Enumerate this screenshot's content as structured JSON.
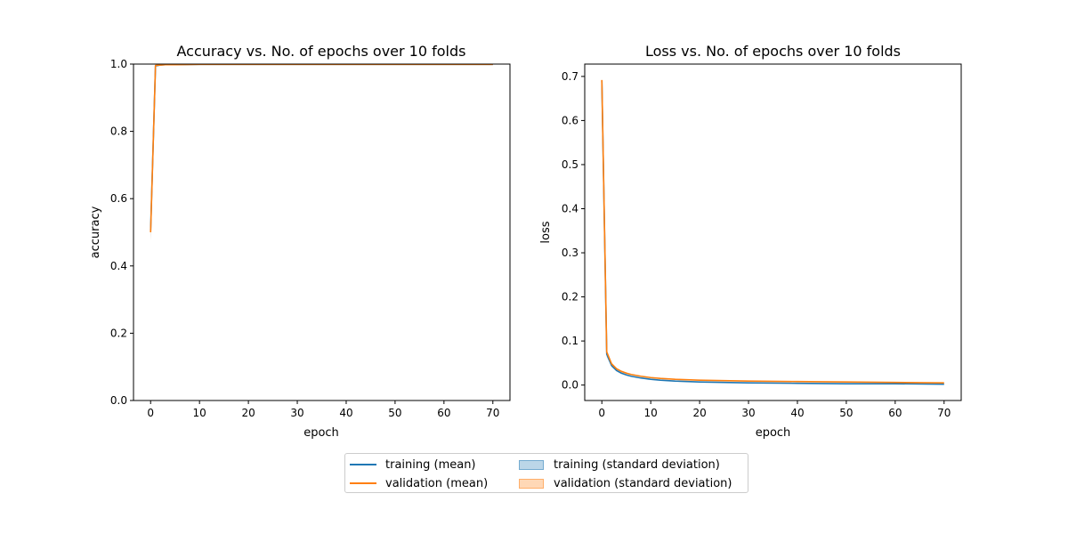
{
  "colors": {
    "training": "#1f77b4",
    "validation": "#ff7f0e",
    "training_fill": "rgba(31,119,180,0.30)",
    "validation_fill": "rgba(255,127,14,0.30)"
  },
  "legend": {
    "training_mean": "training (mean)",
    "validation_mean": "validation (mean)",
    "training_std": "training (standard deviation)",
    "validation_std": "validation (standard deviation)",
    "placement": "lower-center",
    "columns": 2
  },
  "chart_data": [
    {
      "type": "line",
      "title": "Accuracy vs. No. of epochs over 10 folds",
      "xlabel": "epoch",
      "ylabel": "accuracy",
      "xlim": [
        -3.5,
        73.5
      ],
      "ylim": [
        0.0,
        1.0
      ],
      "xticks": [
        0,
        10,
        20,
        30,
        40,
        50,
        60,
        70
      ],
      "yticks": [
        0.0,
        0.2,
        0.4,
        0.6,
        0.8,
        1.0
      ],
      "xtick_labels": [
        "0",
        "10",
        "20",
        "30",
        "40",
        "50",
        "60",
        "70"
      ],
      "ytick_labels": [
        "0.0",
        "0.2",
        "0.4",
        "0.6",
        "0.8",
        "1.0"
      ],
      "series": [
        {
          "name": "training (mean)",
          "color": "training",
          "x": [
            0,
            1,
            2,
            3,
            5,
            10,
            20,
            30,
            40,
            50,
            60,
            70
          ],
          "y": [
            0.505,
            0.995,
            0.997,
            0.998,
            0.998,
            0.999,
            0.999,
            0.999,
            0.999,
            0.999,
            0.999,
            0.999
          ],
          "std": [
            0.03,
            0.004,
            0.002,
            0.001,
            0.001,
            0.001,
            0.001,
            0.001,
            0.001,
            0.001,
            0.001,
            0.001
          ]
        },
        {
          "name": "validation (mean)",
          "color": "validation",
          "x": [
            0,
            1,
            2,
            3,
            5,
            10,
            20,
            30,
            40,
            50,
            60,
            70
          ],
          "y": [
            0.5,
            0.996,
            0.997,
            0.998,
            0.998,
            0.999,
            0.999,
            0.999,
            0.999,
            0.999,
            0.999,
            0.999
          ],
          "std": [
            0.025,
            0.003,
            0.002,
            0.001,
            0.001,
            0.001,
            0.001,
            0.001,
            0.001,
            0.001,
            0.001,
            0.001
          ]
        }
      ],
      "grid": false
    },
    {
      "type": "line",
      "title": "Loss vs. No. of epochs over 10 folds",
      "xlabel": "epoch",
      "ylabel": "loss",
      "xlim": [
        -3.5,
        73.5
      ],
      "ylim": [
        -0.035,
        0.728
      ],
      "xticks": [
        0,
        10,
        20,
        30,
        40,
        50,
        60,
        70
      ],
      "yticks": [
        0.0,
        0.1,
        0.2,
        0.3,
        0.4,
        0.5,
        0.6,
        0.7
      ],
      "xtick_labels": [
        "0",
        "10",
        "20",
        "30",
        "40",
        "50",
        "60",
        "70"
      ],
      "ytick_labels": [
        "0.0",
        "0.1",
        "0.2",
        "0.3",
        "0.4",
        "0.5",
        "0.6",
        "0.7"
      ],
      "series": [
        {
          "name": "training (mean)",
          "color": "training",
          "x": [
            0,
            1,
            2,
            3,
            4,
            5,
            6,
            8,
            10,
            12,
            15,
            20,
            25,
            30,
            40,
            50,
            60,
            70
          ],
          "y": [
            0.69,
            0.07,
            0.044,
            0.033,
            0.027,
            0.023,
            0.02,
            0.016,
            0.013,
            0.011,
            0.009,
            0.007,
            0.006,
            0.005,
            0.004,
            0.003,
            0.003,
            0.002
          ],
          "std": [
            0.004,
            0.006,
            0.003,
            0.002,
            0.002,
            0.001,
            0.001,
            0.001,
            0.001,
            0.001,
            0.001,
            0.001,
            0.001,
            0.001,
            0.001,
            0.001,
            0.001,
            0.001
          ]
        },
        {
          "name": "validation (mean)",
          "color": "validation",
          "x": [
            0,
            1,
            2,
            3,
            4,
            5,
            6,
            8,
            10,
            12,
            15,
            20,
            25,
            30,
            40,
            50,
            60,
            70
          ],
          "y": [
            0.692,
            0.075,
            0.048,
            0.037,
            0.031,
            0.027,
            0.024,
            0.02,
            0.017,
            0.015,
            0.013,
            0.011,
            0.01,
            0.009,
            0.008,
            0.007,
            0.006,
            0.005
          ],
          "std": [
            0.004,
            0.006,
            0.003,
            0.002,
            0.002,
            0.002,
            0.001,
            0.001,
            0.001,
            0.001,
            0.001,
            0.001,
            0.001,
            0.001,
            0.001,
            0.001,
            0.001,
            0.001
          ]
        }
      ],
      "grid": false
    }
  ]
}
